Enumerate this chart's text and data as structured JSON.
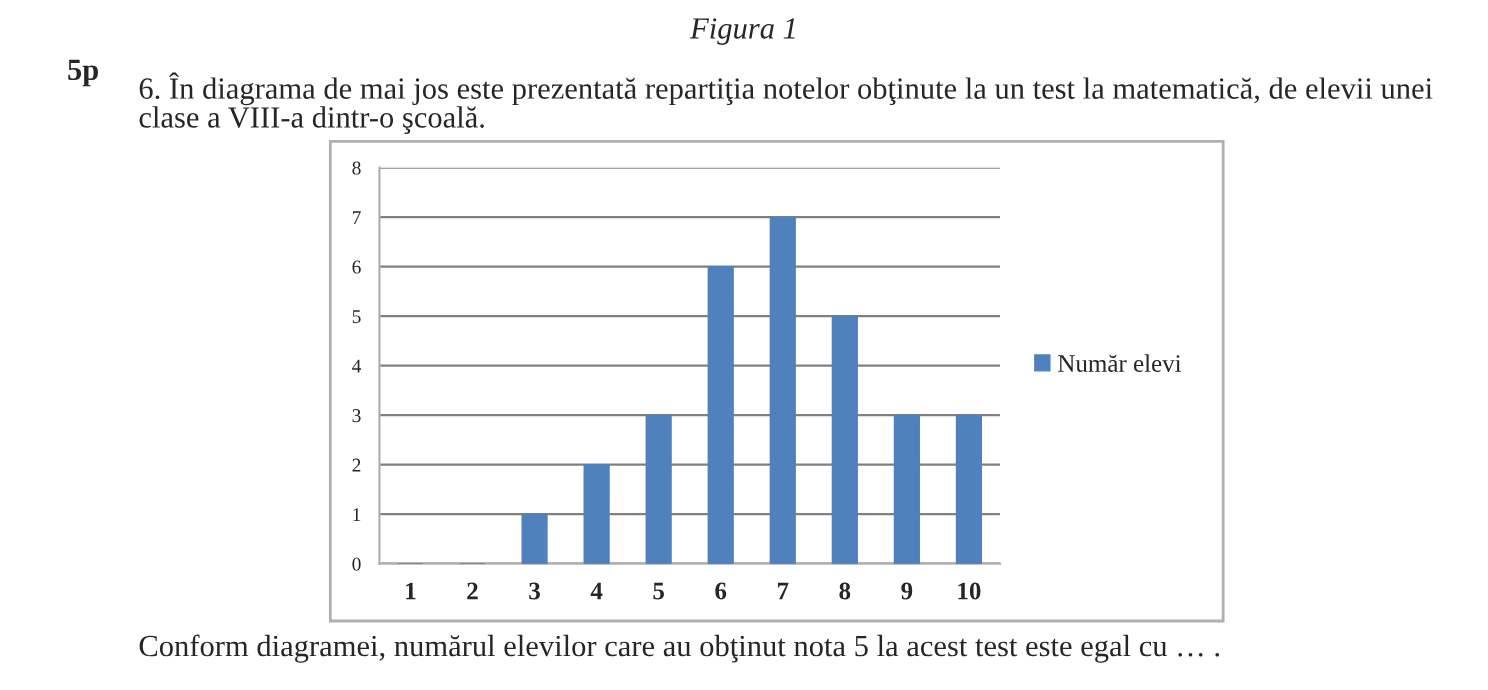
{
  "chart_data": {
    "type": "bar",
    "title": "Figura 1",
    "annotations": [
      "5p",
      "6. În diagrama de mai jos este prezentată repartiţia notelor obţinute la un test la matematică, de elevii unei clase a VIII-a dintr-o şcoală.",
      "Conform diagramei, numărul elevilor care au obţinut nota 5 la acest test este egal cu … ."
    ],
    "categories": [
      "1",
      "2",
      "3",
      "4",
      "5",
      "6",
      "7",
      "8",
      "9",
      "10"
    ],
    "series": [
      {
        "name": "Număr elevi",
        "color": "#4f81bd",
        "values": [
          0,
          0,
          1,
          2,
          3,
          6,
          7,
          5,
          3,
          3
        ]
      }
    ],
    "ylim": [
      0,
      8
    ],
    "yticks": [
      0,
      1,
      2,
      3,
      4,
      5,
      6,
      7,
      8
    ],
    "grid": "y",
    "legend": "right"
  }
}
